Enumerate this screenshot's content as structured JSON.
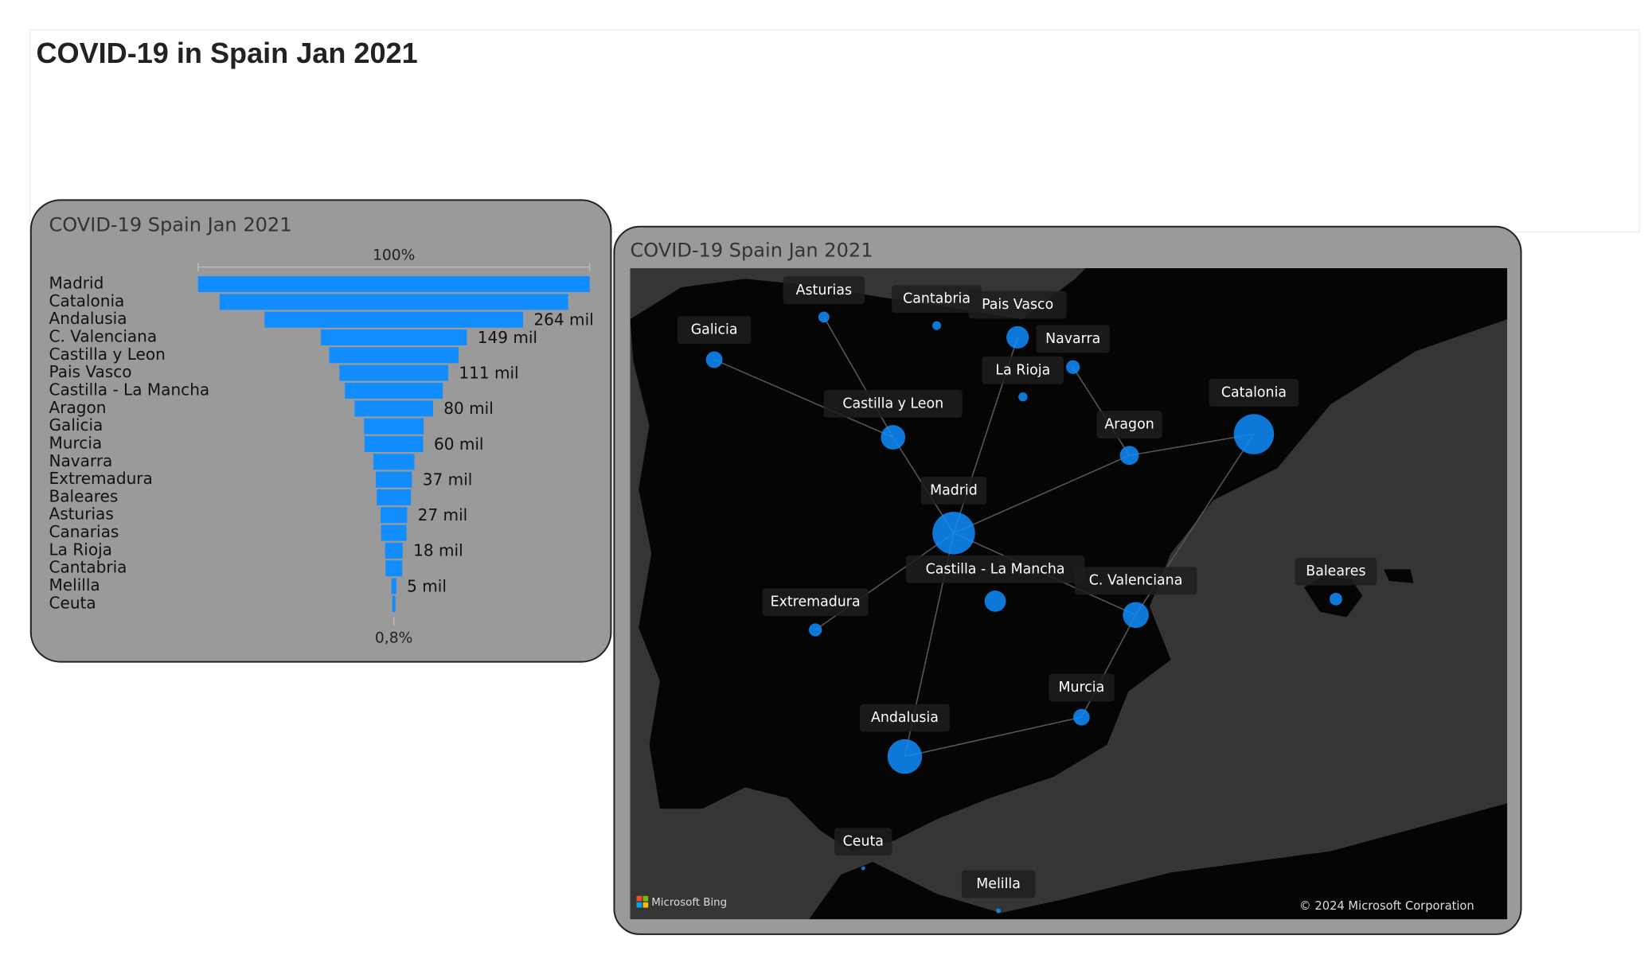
{
  "title": "COVID-19 in Spain Jan 2021",
  "chart_data": [
    {
      "type": "funnel",
      "title": "COVID-19 Spain Jan 2021",
      "top_label": "100%",
      "bottom_label": "0,8%",
      "color": "#118dff",
      "categories": [
        "Madrid",
        "Catalonia",
        "Andalusia",
        "C. Valenciana",
        "Castilla y Leon",
        "Pais Vasco",
        "Castilla - La Mancha",
        "Aragon",
        "Galicia",
        "Murcia",
        "Navarra",
        "Extremadura",
        "Baleares",
        "Asturias",
        "Canarias",
        "La Rioja",
        "Cantabria",
        "Melilla",
        "Ceuta"
      ],
      "values": [
        400000,
        356000,
        264000,
        149000,
        132000,
        111000,
        100000,
        80000,
        61000,
        60000,
        42000,
        37000,
        35000,
        27000,
        26000,
        18000,
        17000,
        5000,
        3200
      ],
      "value_labels": [
        null,
        null,
        "264 mil",
        "149 mil",
        null,
        "111 mil",
        null,
        "80 mil",
        null,
        "60 mil",
        null,
        "37 mil",
        null,
        "27 mil",
        null,
        "18 mil",
        null,
        "5 mil",
        null
      ]
    },
    {
      "type": "bubble-map",
      "title": "COVID-19 Spain Jan 2021",
      "provider": "Microsoft Bing",
      "attribution": "© 2024 Microsoft Corporation"
    }
  ]
}
